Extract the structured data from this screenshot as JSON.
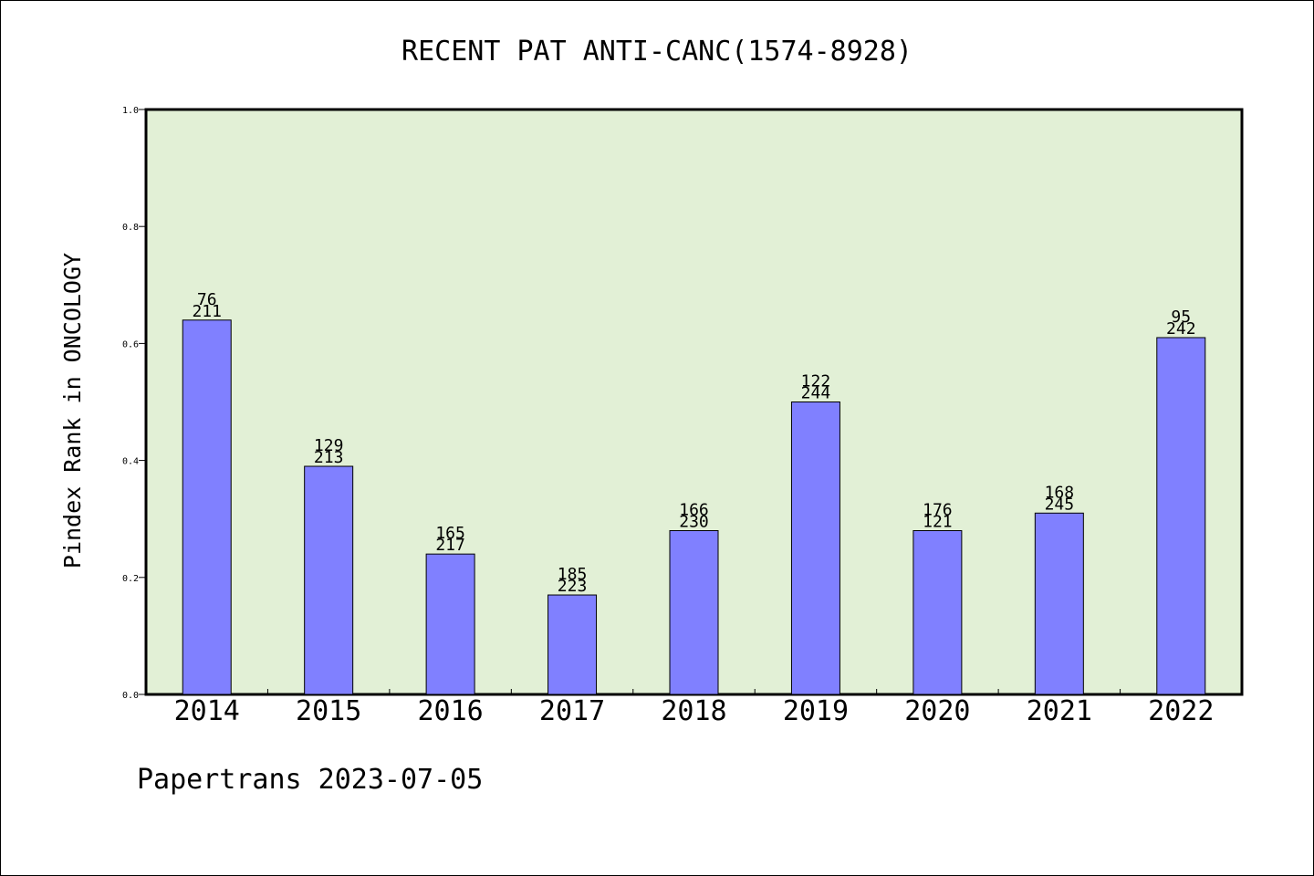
{
  "chart_data": {
    "type": "bar",
    "title": "RECENT PAT ANTI-CANC(1574-8928)",
    "ylabel": "Pindex Rank in ONCOLOGY",
    "xlabel": "",
    "categories": [
      "2014",
      "2015",
      "2016",
      "2017",
      "2018",
      "2019",
      "2020",
      "2021",
      "2022"
    ],
    "values": [
      0.64,
      0.39,
      0.24,
      0.17,
      0.28,
      0.5,
      0.28,
      0.31,
      0.61
    ],
    "label_top": [
      "76",
      "129",
      "165",
      "185",
      "166",
      "122",
      "176",
      "168",
      "95"
    ],
    "label_bottom": [
      "211",
      "213",
      "217",
      "223",
      "230",
      "244",
      "121",
      "245",
      "242"
    ],
    "ylim": [
      0,
      1.0
    ],
    "yticks": [
      0.0,
      0.2,
      0.4,
      0.6,
      0.8,
      1.0
    ],
    "ytick_labels": [
      "0.0",
      "0.2",
      "0.4",
      "0.6",
      "0.8",
      "1.0"
    ],
    "grid": false,
    "colors": {
      "bar": "#8080ff",
      "plot_bg": "#e2f0d6",
      "axis": "#000000"
    }
  },
  "footer": {
    "credit": "Papertrans 2023-07-05"
  }
}
